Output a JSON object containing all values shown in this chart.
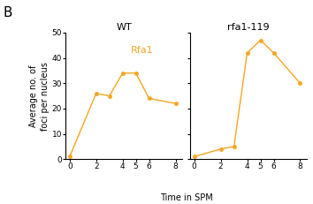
{
  "wt_x": [
    0,
    2,
    3,
    4,
    5,
    6,
    8
  ],
  "wt_y": [
    1,
    26,
    25,
    34,
    34,
    24,
    22
  ],
  "mut_x": [
    0,
    2,
    3,
    4,
    5,
    6,
    8
  ],
  "mut_y": [
    1,
    4,
    5,
    42,
    47,
    42,
    30
  ],
  "line_color": "#F5A623",
  "title_wt": "WT",
  "title_mut": "rfa1-119",
  "legend_label": "Rfa1",
  "xlabel": "Time in SPM",
  "ylabel": "Average no. of\nfoci per nucleus",
  "ylim": [
    0,
    50
  ],
  "yticks": [
    0,
    10,
    20,
    30,
    40,
    50
  ],
  "xticks": [
    0,
    2,
    4,
    5,
    6,
    8
  ],
  "panel_label": "B",
  "title_fontsize": 8,
  "label_fontsize": 7,
  "tick_fontsize": 6.5,
  "legend_fontsize": 8,
  "panel_fontsize": 11
}
